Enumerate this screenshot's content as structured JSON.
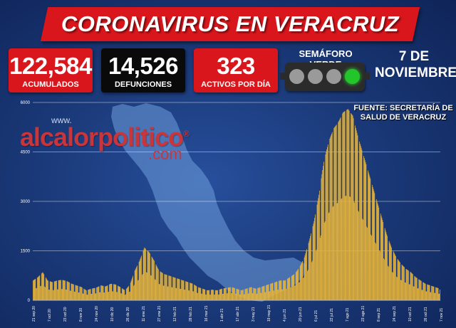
{
  "header": {
    "title": "CORONAVIRUS EN VERACRUZ"
  },
  "stats": [
    {
      "value": "122,584",
      "label": "ACUMULADOS"
    },
    {
      "value": "14,526",
      "label": "DEFUNCIONES"
    },
    {
      "value": "323",
      "label": "ACTIVOS POR DÍA"
    }
  ],
  "semaforo": {
    "label": "SEMÁFORO VERDE",
    "active_light": "green",
    "light_colors": [
      "#9a9a9a",
      "#9a9a9a",
      "#9a9a9a",
      "#22c52a"
    ]
  },
  "date": {
    "line1": "7 DE",
    "line2": "NOVIEMBRE"
  },
  "source": {
    "line1": "FUENTE: SECRETARÍA DE",
    "line2": "SALUD DE VERACRUZ"
  },
  "watermark": {
    "prefix": "www.",
    "brand": "alcalorpolitico",
    "reg": "®",
    "suffix": ".com"
  },
  "colors": {
    "bar": "#e8b53a",
    "title_red": "#d8161c",
    "background": "#1b3a7a"
  },
  "chart_data": {
    "type": "bar",
    "title": "",
    "xlabel": "",
    "ylabel": "",
    "ylim": [
      0,
      6000
    ],
    "yticks": [
      0,
      1500,
      3000,
      4500,
      6000
    ],
    "grid": true,
    "legend": "none",
    "xtick_labels": [
      "21 sep 20",
      "7 oct 20",
      "23 oct 20",
      "8 nov 20",
      "24 nov 20",
      "10 dic 20",
      "26 dic 20",
      "11 ene 21",
      "27 ene 21",
      "12 feb 21",
      "28 feb 21",
      "16 mar 21",
      "1 abr 21",
      "17 abr 21",
      "3 may 21",
      "19 may 21",
      "4 jun 21",
      "20 jun 21",
      "6 jul 21",
      "22 jul 21",
      "7 ago 21",
      "23 ago 21",
      "8 sep 21",
      "24 sep 21",
      "10 oct 21",
      "26 oct 21",
      "7 nov 21"
    ],
    "series": [
      {
        "values_every_8_days": [
          600,
          700,
          850,
          600,
          550,
          600,
          620,
          580,
          500,
          450,
          400,
          300,
          350,
          380,
          450,
          420,
          500,
          480,
          400,
          300,
          480,
          900,
          1200,
          1600,
          1450,
          1200,
          900,
          800,
          750,
          700,
          650,
          600,
          550,
          500,
          400,
          350,
          300,
          320,
          300,
          350,
          380,
          400,
          350,
          300,
          350,
          400,
          350,
          400,
          450,
          500,
          550,
          600,
          600,
          700,
          800,
          1000,
          1300,
          1800,
          2400,
          3200,
          4200,
          4800,
          5200,
          5400,
          5700,
          5800,
          5600,
          5000,
          4500,
          4000,
          3500,
          3000,
          2500,
          2000,
          1600,
          1300,
          1100,
          950,
          850,
          700,
          600,
          500,
          450,
          400,
          350
        ],
        "last_value": 323
      }
    ]
  }
}
